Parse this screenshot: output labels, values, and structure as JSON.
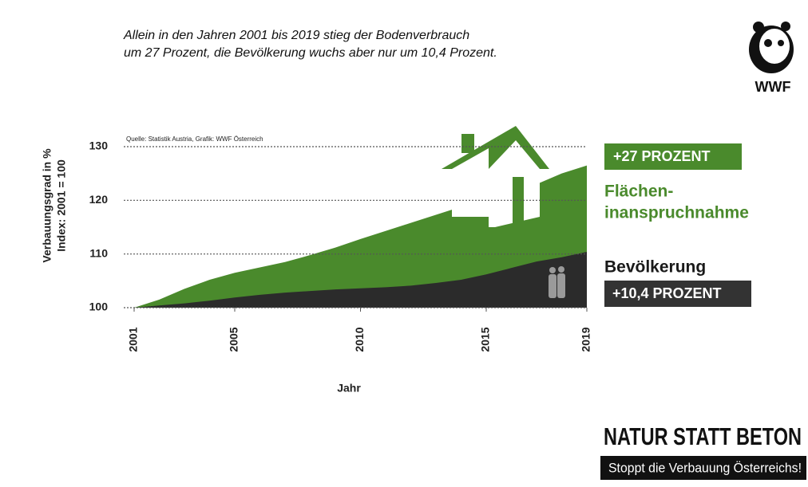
{
  "chart_data": {
    "type": "area",
    "title_lines": [
      "Allein in den Jahren 2001 bis 2019 stieg der Bodenverbrauch",
      "um 27 Prozent, die Bevölkerung wuchs aber nur um 10,4 Prozent."
    ],
    "source": "Quelle: Statistik Austria, Grafik: WWF Österreich",
    "ylabel_lines": [
      "Verbauungsgrad in %",
      "Index: 2001 = 100"
    ],
    "xlabel": "Jahr",
    "x": [
      2001,
      2002,
      2003,
      2004,
      2005,
      2006,
      2007,
      2008,
      2009,
      2010,
      2011,
      2012,
      2013,
      2014,
      2015,
      2016,
      2017,
      2018,
      2019
    ],
    "series": [
      {
        "color": "#4a8a2c",
        "values": [
          100,
          101.5,
          103.5,
          105.2,
          106.5,
          107.5,
          108.5,
          109.8,
          111.2,
          112.8,
          114.3,
          115.8,
          117.3,
          118.8,
          120.2,
          121.5,
          123,
          125,
          126.5
        ]
      },
      {
        "color": "#2b2b2b",
        "values": [
          100,
          100.4,
          100.8,
          101.3,
          101.9,
          102.4,
          102.8,
          103.1,
          103.4,
          103.6,
          103.8,
          104.1,
          104.6,
          105.2,
          106.2,
          107.4,
          108.6,
          109.4,
          110.4
        ]
      }
    ],
    "xlim": [
      2001,
      2019
    ],
    "xticks": [
      2001,
      2005,
      2010,
      2015,
      2019
    ],
    "ylim": [
      100,
      130
    ],
    "yticks": [
      100,
      110,
      120,
      130
    ],
    "grid": true,
    "annotations": {
      "land_change": "+27 PROZENT",
      "land_line1": "Flächen-",
      "land_line2": "inanspruchnahme",
      "population": "Bevölkerung",
      "population_change": "+10,4 PROZENT"
    },
    "logo": "WWF",
    "slogan": "NATUR STATT BETON",
    "subslogan": "Stoppt die Verbauung Österreichs!"
  }
}
